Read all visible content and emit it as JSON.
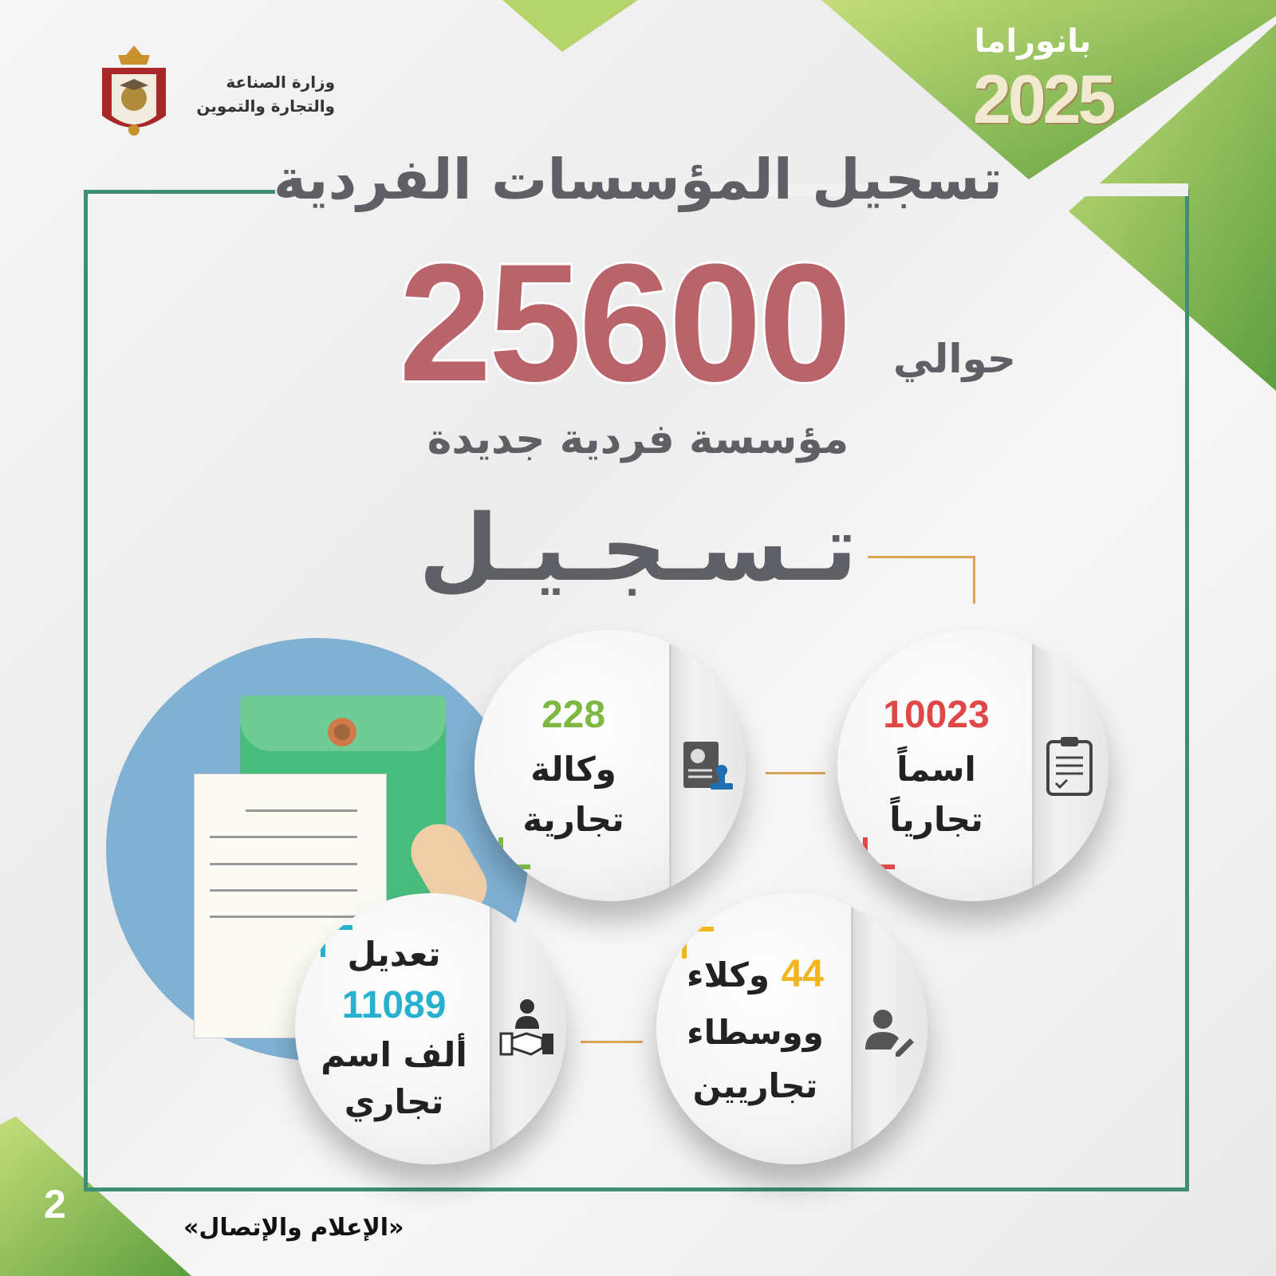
{
  "header": {
    "ministry_line1": "وزارة الصناعة",
    "ministry_line2": "والتجارة والتموين",
    "panorama_label": "بانوراما",
    "year": "2025"
  },
  "title": "تسجيل المؤسسات الفردية",
  "hero": {
    "prefix": "حوالي",
    "number": "25600",
    "caption": "مؤسسة فردية جديدة"
  },
  "section_title": "تـسـجـيـل",
  "cards": [
    {
      "number": "10023",
      "line1": "اسماً",
      "line2": "تجارياً",
      "color": "#e04848",
      "icon": "clipboard-icon"
    },
    {
      "number": "228",
      "line1": "وكالة",
      "line2": "تجارية",
      "color": "#7db843",
      "icon": "certificate-stamp-icon"
    },
    {
      "number": "44",
      "line1": "وكلاء",
      "line2": "ووسطاء",
      "line3": "تجاريين",
      "color": "#f2b51e",
      "icon": "user-edit-icon"
    },
    {
      "number": "11089",
      "line0": "تعديل",
      "line1": "ألف اسم",
      "line2": "تجاري",
      "color": "#27b1cf",
      "icon": "handshake-icon"
    }
  ],
  "footer": {
    "page_number": "2",
    "credit": "«الإعلام والإتصال»"
  },
  "colors": {
    "frame": "#3e8e75",
    "green": "#7db843",
    "hero": "#b9646a",
    "text": "#5f6066"
  }
}
